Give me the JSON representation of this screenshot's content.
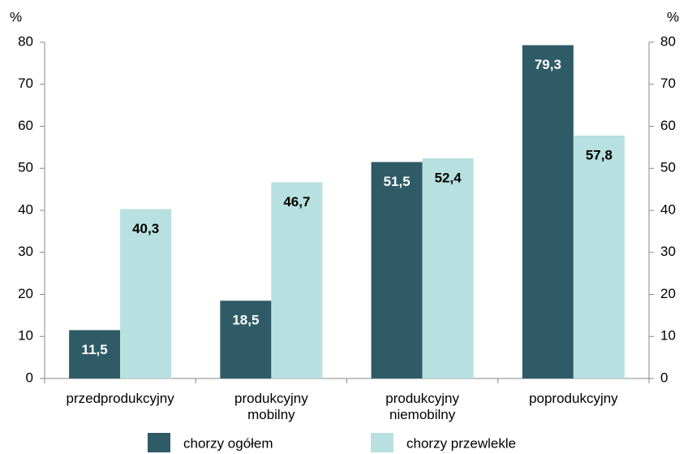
{
  "chart_data": {
    "type": "bar",
    "y_label": "%",
    "y2_label": "%",
    "categories": [
      "przedprodukcyjny",
      "produkcyjny\nmobilny",
      "produkcyjny\nniemobilny",
      "poprodukcyjny"
    ],
    "series": [
      {
        "name": "chorzy ogółem",
        "color": "#2e5b66",
        "label_color": "#ffffff",
        "values": [
          11.5,
          18.5,
          51.5,
          79.3
        ],
        "value_labels": [
          "11,5",
          "18,5",
          "51,5",
          "79,3"
        ]
      },
      {
        "name": "chorzy przewlekle",
        "color": "#b8e0e0",
        "label_color": "#000000",
        "values": [
          40.3,
          46.7,
          52.4,
          57.8
        ],
        "value_labels": [
          "40,3",
          "46,7",
          "52,4",
          "57,8"
        ]
      }
    ],
    "ylim": [
      0,
      80
    ],
    "yticks": [
      0,
      10,
      20,
      30,
      40,
      50,
      60,
      70,
      80
    ],
    "y2lim": [
      0,
      80
    ],
    "y2ticks": [
      0,
      10,
      20,
      30,
      40,
      50,
      60,
      70,
      80
    ],
    "grid": false
  }
}
